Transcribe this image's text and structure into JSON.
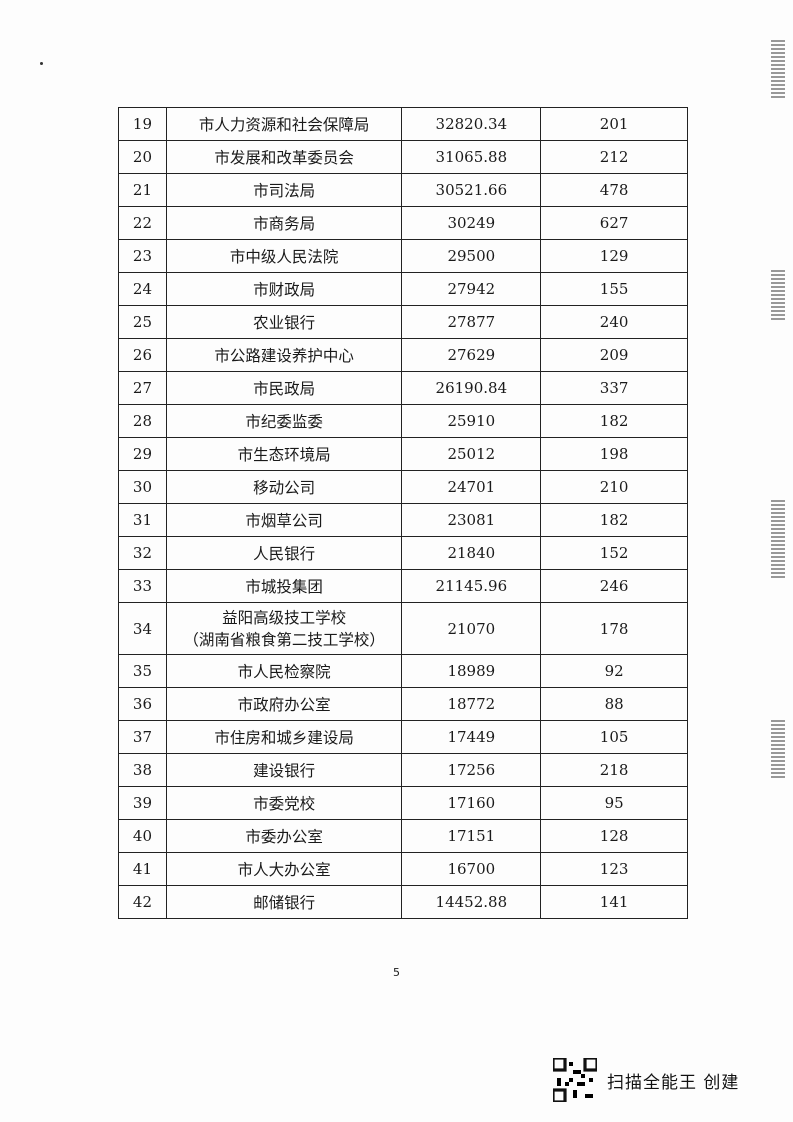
{
  "table": {
    "rows": [
      {
        "no": "19",
        "name": "市人力资源和社会保障局",
        "amount": "32820.34",
        "count": "201"
      },
      {
        "no": "20",
        "name": "市发展和改革委员会",
        "amount": "31065.88",
        "count": "212"
      },
      {
        "no": "21",
        "name": "市司法局",
        "amount": "30521.66",
        "count": "478"
      },
      {
        "no": "22",
        "name": "市商务局",
        "amount": "30249",
        "count": "627"
      },
      {
        "no": "23",
        "name": "市中级人民法院",
        "amount": "29500",
        "count": "129"
      },
      {
        "no": "24",
        "name": "市财政局",
        "amount": "27942",
        "count": "155"
      },
      {
        "no": "25",
        "name": "农业银行",
        "amount": "27877",
        "count": "240"
      },
      {
        "no": "26",
        "name": "市公路建设养护中心",
        "amount": "27629",
        "count": "209"
      },
      {
        "no": "27",
        "name": "市民政局",
        "amount": "26190.84",
        "count": "337"
      },
      {
        "no": "28",
        "name": "市纪委监委",
        "amount": "25910",
        "count": "182"
      },
      {
        "no": "29",
        "name": "市生态环境局",
        "amount": "25012",
        "count": "198"
      },
      {
        "no": "30",
        "name": "移动公司",
        "amount": "24701",
        "count": "210"
      },
      {
        "no": "31",
        "name": "市烟草公司",
        "amount": "23081",
        "count": "182"
      },
      {
        "no": "32",
        "name": "人民银行",
        "amount": "21840",
        "count": "152"
      },
      {
        "no": "33",
        "name": "市城投集团",
        "amount": "21145.96",
        "count": "246"
      },
      {
        "no": "34",
        "name": "益阳高级技工学校",
        "name2": "（湖南省粮食第二技工学校）",
        "amount": "21070",
        "count": "178"
      },
      {
        "no": "35",
        "name": "市人民检察院",
        "amount": "18989",
        "count": "92"
      },
      {
        "no": "36",
        "name": "市政府办公室",
        "amount": "18772",
        "count": "88"
      },
      {
        "no": "37",
        "name": "市住房和城乡建设局",
        "amount": "17449",
        "count": "105"
      },
      {
        "no": "38",
        "name": "建设银行",
        "amount": "17256",
        "count": "218"
      },
      {
        "no": "39",
        "name": "市委党校",
        "amount": "17160",
        "count": "95"
      },
      {
        "no": "40",
        "name": "市委办公室",
        "amount": "17151",
        "count": "128"
      },
      {
        "no": "41",
        "name": "市人大办公室",
        "amount": "16700",
        "count": "123"
      },
      {
        "no": "42",
        "name": "邮储银行",
        "amount": "14452.88",
        "count": "141"
      }
    ]
  },
  "page_number": "5",
  "watermark": {
    "text": "扫描全能王 创建",
    "icon": "qr-code-icon"
  }
}
